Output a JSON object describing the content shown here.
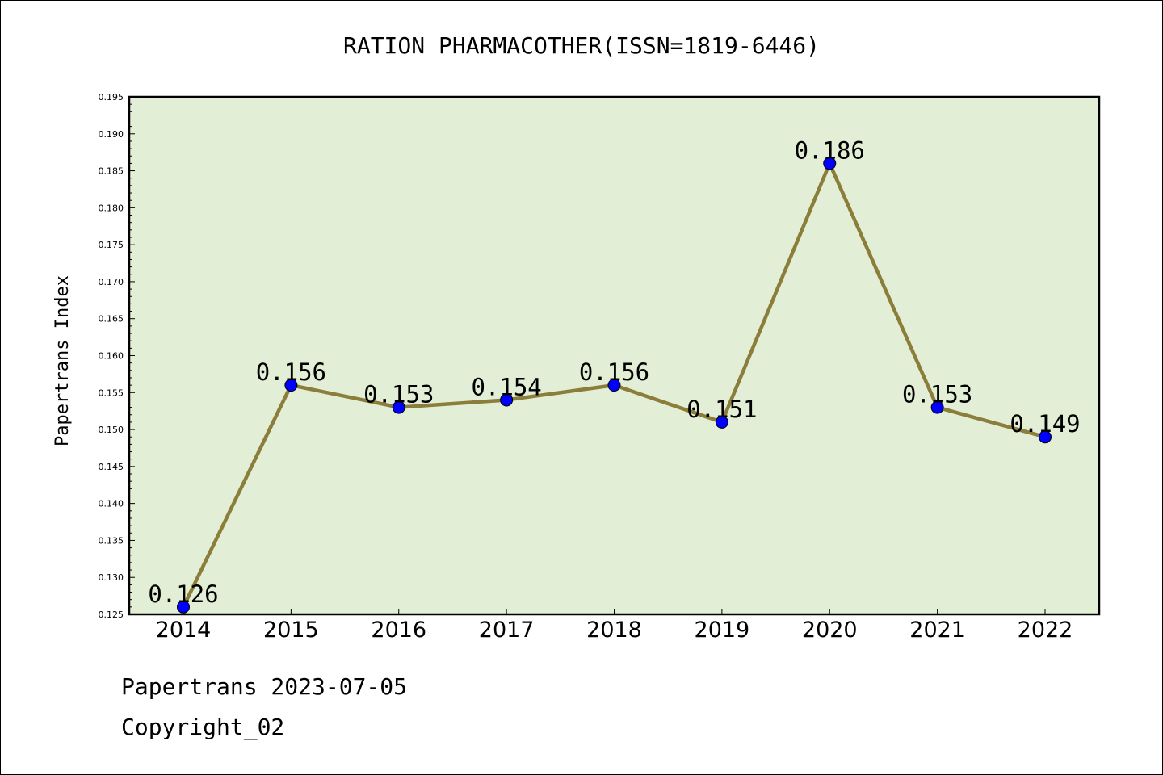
{
  "chart_data": {
    "type": "line",
    "title": "RATION PHARMACOTHER(ISSN=1819-6446)",
    "xlabel": "",
    "ylabel": "Papertrans Index",
    "categories": [
      "2014",
      "2015",
      "2016",
      "2017",
      "2018",
      "2019",
      "2020",
      "2021",
      "2022"
    ],
    "series": [
      {
        "values": [
          0.126,
          0.156,
          0.153,
          0.154,
          0.156,
          0.151,
          0.186,
          0.153,
          0.149
        ]
      }
    ],
    "data_labels": [
      "0.126",
      "0.156",
      "0.153",
      "0.154",
      "0.156",
      "0.151",
      "0.186",
      "0.153",
      "0.149"
    ],
    "ylim": [
      0.125,
      0.195
    ],
    "yticks": [
      "0.125",
      "0.130",
      "0.135",
      "0.140",
      "0.145",
      "0.150",
      "0.155",
      "0.160",
      "0.165",
      "0.170",
      "0.175",
      "0.180",
      "0.185",
      "0.190",
      "0.195"
    ],
    "grid": false,
    "colors": {
      "plot_bg": "#e2efd6",
      "line": "#8b7d3a",
      "marker": "#0000ff"
    }
  },
  "footer": {
    "line1": "Papertrans 2023-07-05",
    "line2": "Copyright_02"
  }
}
